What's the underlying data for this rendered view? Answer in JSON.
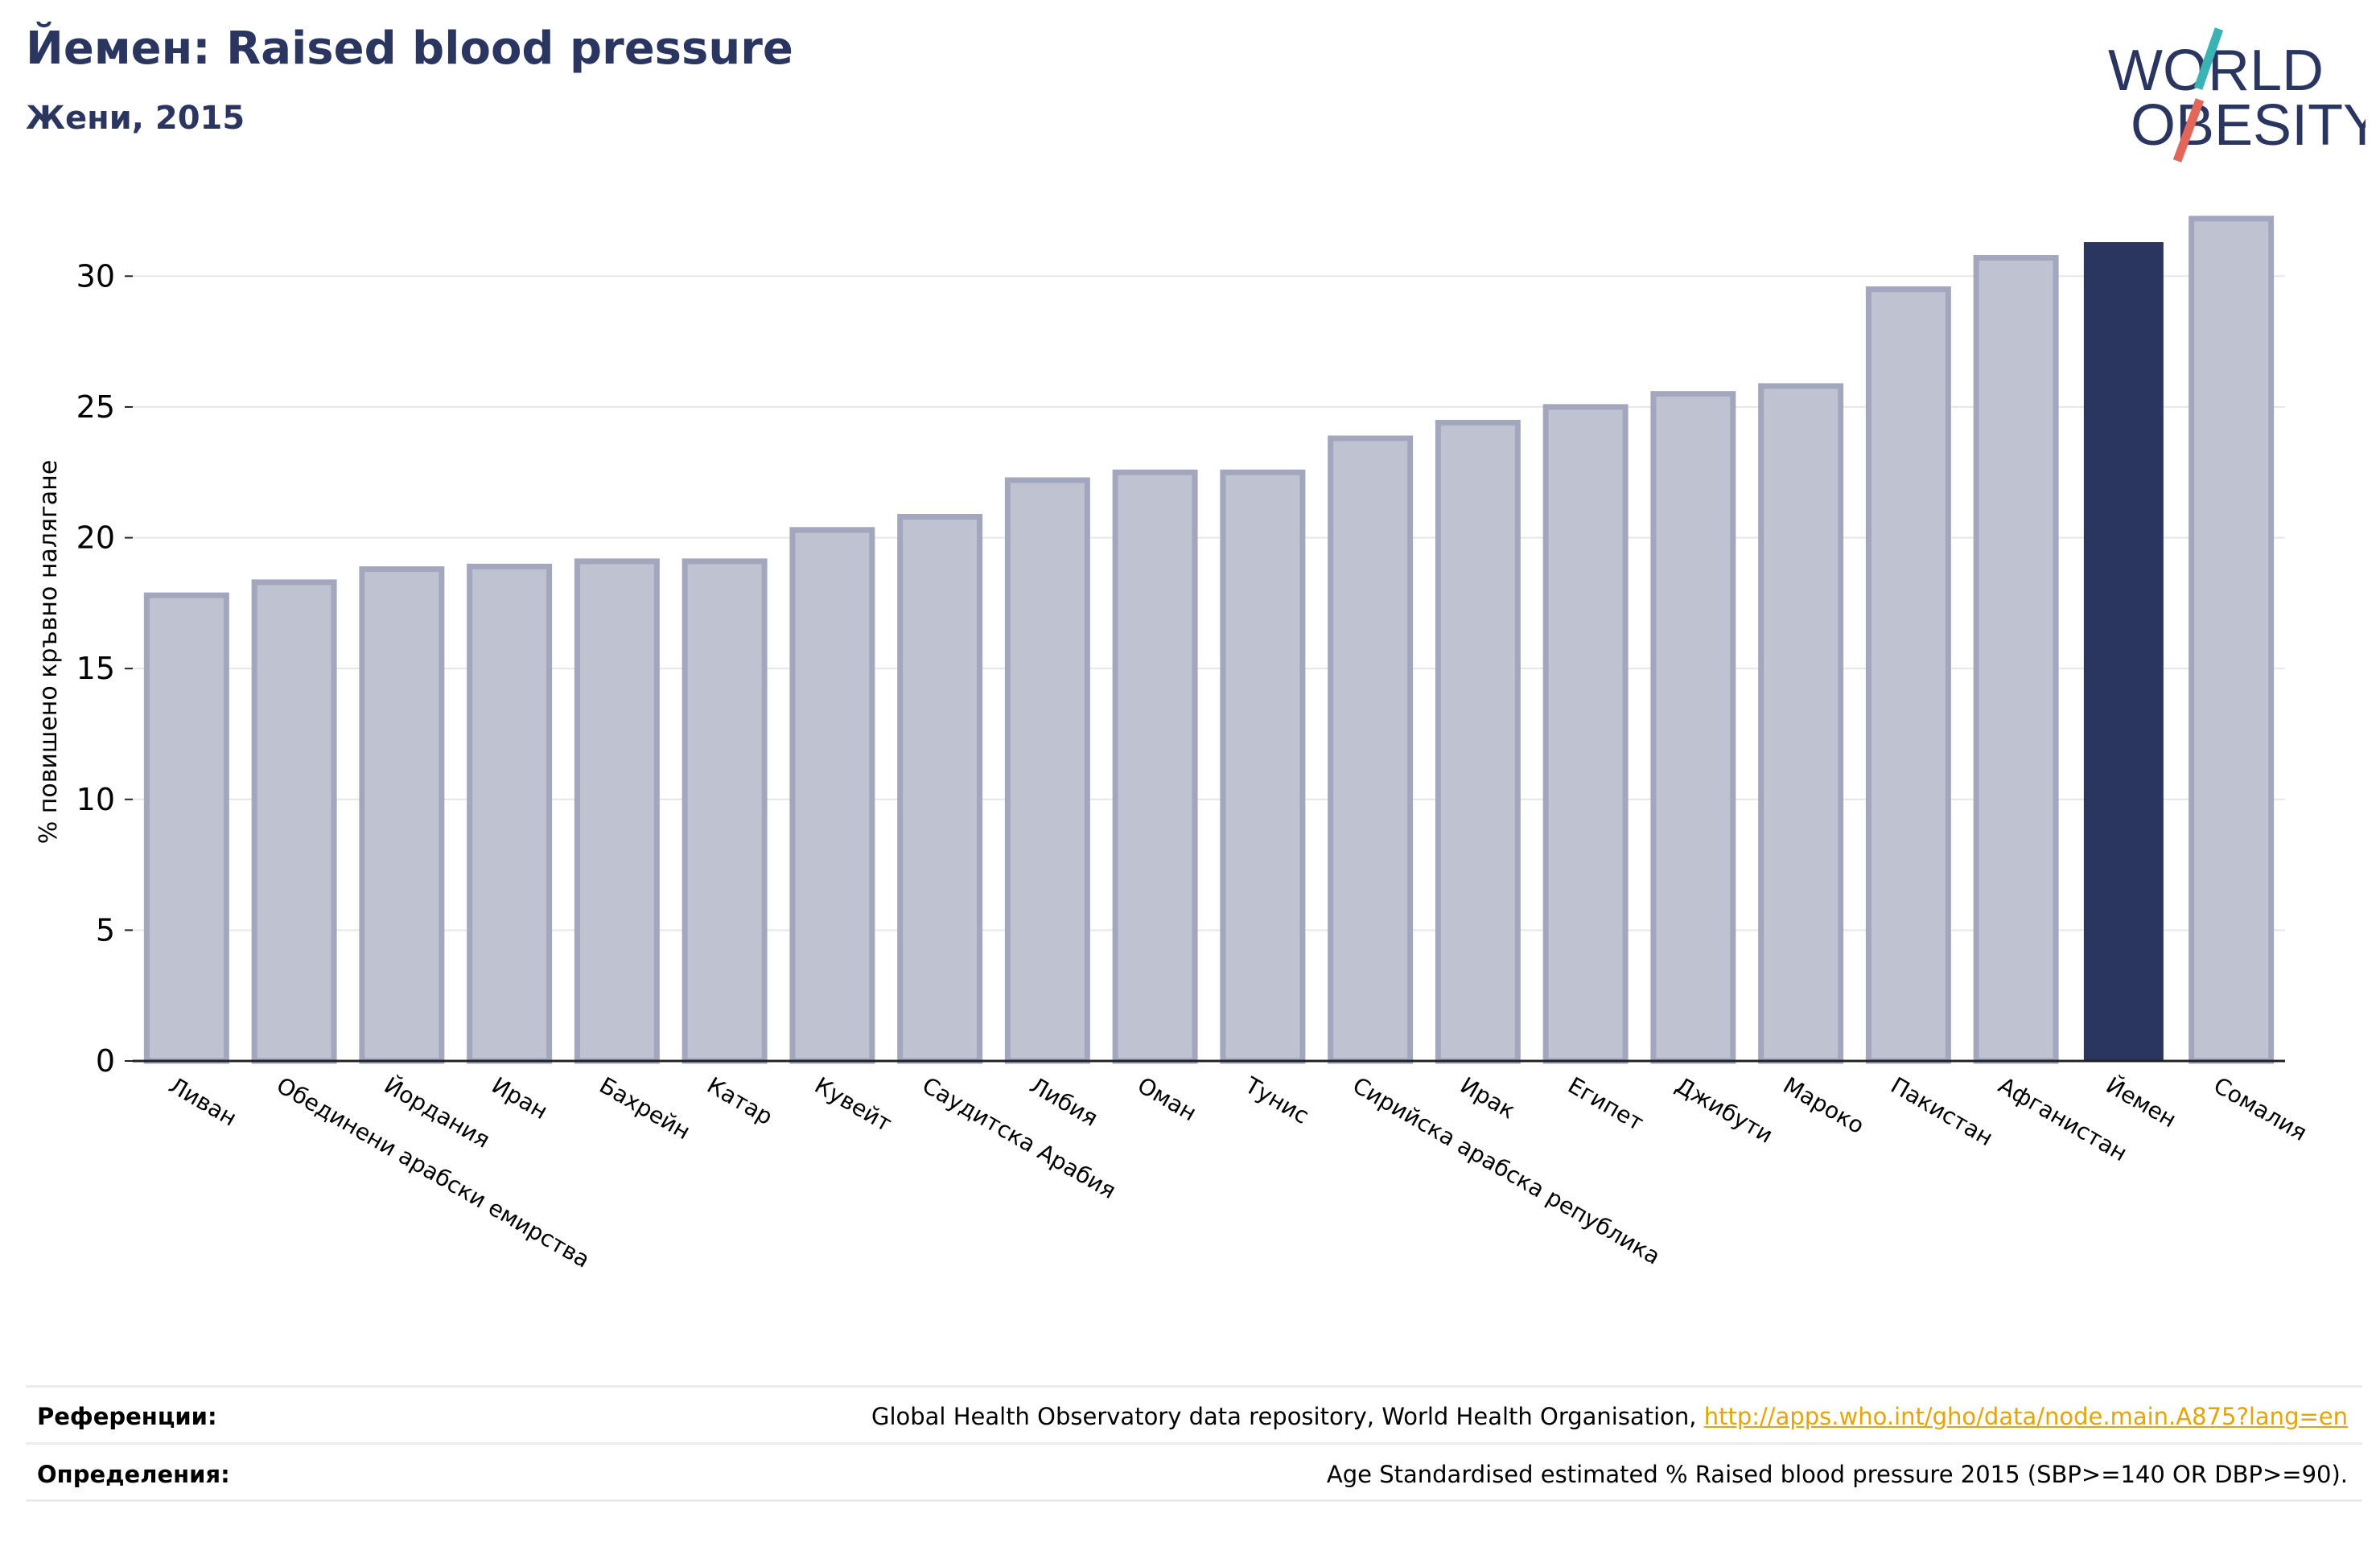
{
  "header": {
    "title": "Йемен: Raised blood pressure",
    "subtitle": "Жени, 2015"
  },
  "logo": {
    "line1": "WORLD",
    "line2": "OBESITY",
    "text_color": "#2a3560",
    "slash_teal": "#3bb3b5",
    "slash_red": "#e2675a"
  },
  "chart_data": {
    "type": "bar",
    "title": "Йемен: Raised blood pressure",
    "subtitle": "Жени, 2015",
    "xlabel": "",
    "ylabel": "% повишено кръвно налягане",
    "ylim": [
      0,
      32.5
    ],
    "yticks": [
      0,
      5,
      10,
      15,
      20,
      25,
      30
    ],
    "grid": true,
    "highlight": "Йемен",
    "colors": {
      "bar": "#bfc2d0",
      "bar_edge": "#a3a7bd",
      "highlight": "#2a3560"
    },
    "categories": [
      "Ливан",
      "Обединени арабски емирства",
      "Йордания",
      "Иран",
      "Бахрейн",
      "Катар",
      "Кувейт",
      "Саудитска Арабия",
      "Либия",
      "Оман",
      "Тунис",
      "Сирийска арабска република",
      "Ирак",
      "Египет",
      "Джибути",
      "Мароко",
      "Пакистан",
      "Афганистан",
      "Йемен",
      "Сомалия"
    ],
    "values": [
      17.8,
      18.3,
      18.8,
      18.9,
      19.1,
      19.1,
      20.3,
      20.8,
      22.2,
      22.5,
      22.5,
      23.8,
      24.4,
      25.0,
      25.5,
      25.8,
      29.5,
      30.7,
      31.3,
      32.2
    ]
  },
  "footer": {
    "references_label": "Референции:",
    "references_text": "Global Health Observatory data repository, World Health Organisation, ",
    "references_link": "http://apps.who.int/gho/data/node.main.A875?lang=en",
    "definitions_label": "Определения:",
    "definitions_text": "Age Standardised estimated % Raised blood pressure 2015 (SBP>=140 OR DBP>=90)."
  }
}
